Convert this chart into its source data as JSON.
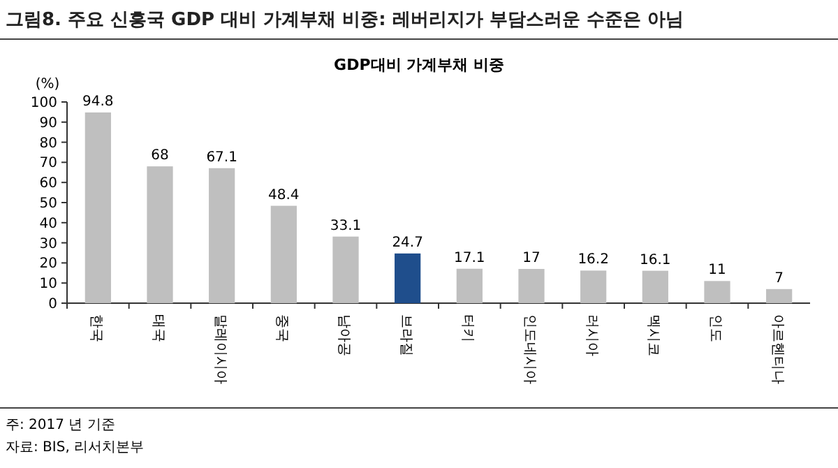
{
  "chart_data": {
    "type": "bar",
    "title": "그림8. 주요 신흥국 GDP 대비 가계부채 비중: 레버리지가 부담스러운 수준은 아님",
    "subtitle": "GDP대비 가계부채 비중",
    "ylabel": "(%)",
    "categories": [
      "한국",
      "태국",
      "말레이시아",
      "중국",
      "남아공",
      "브라질",
      "터키",
      "인도네시아",
      "러시아",
      "멕시코",
      "인도",
      "아르헨티나"
    ],
    "values": [
      94.8,
      68,
      67.1,
      48.4,
      33.1,
      24.7,
      17.1,
      17,
      16.2,
      16.1,
      11,
      7
    ],
    "colors": [
      "#bfbfbf",
      "#bfbfbf",
      "#bfbfbf",
      "#bfbfbf",
      "#bfbfbf",
      "#1f4e8c",
      "#bfbfbf",
      "#bfbfbf",
      "#bfbfbf",
      "#bfbfbf",
      "#bfbfbf",
      "#bfbfbf"
    ],
    "ylim": [
      0,
      100
    ],
    "yticks": [
      0,
      10,
      20,
      30,
      40,
      50,
      60,
      70,
      80,
      90,
      100
    ],
    "data_labels": true,
    "grid": false,
    "annotations": [
      "주: 2017 년 기준",
      "자료: BIS, 리서치본부"
    ]
  }
}
